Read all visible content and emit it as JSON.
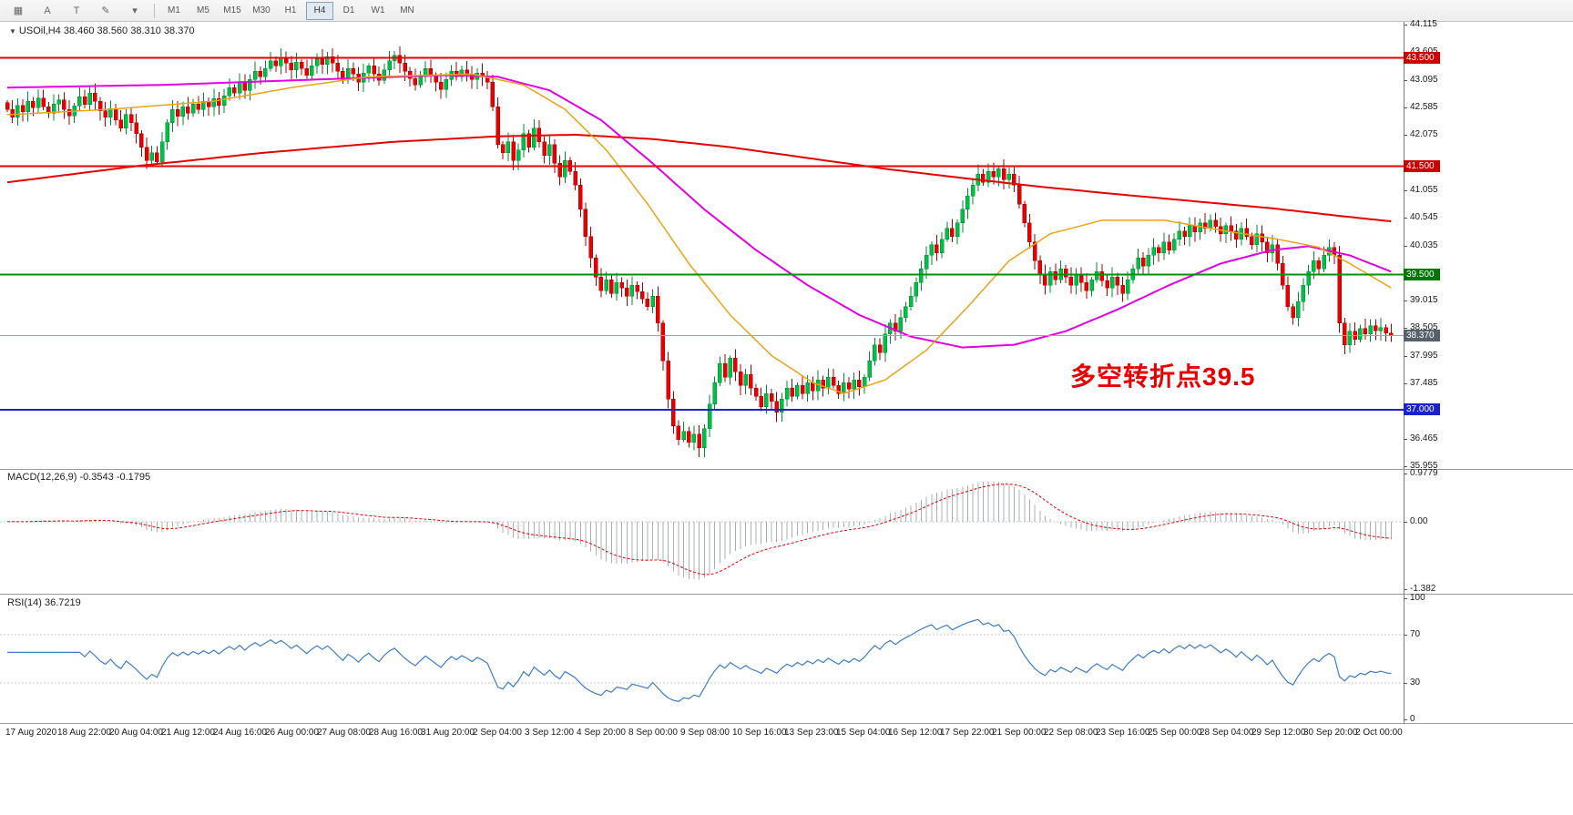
{
  "toolbar": {
    "left_icons": [
      {
        "name": "chart-grid-icon",
        "glyph": "▦"
      },
      {
        "name": "annotate-letter-icon",
        "glyph": "A"
      },
      {
        "name": "text-tool-icon",
        "glyph": "T"
      },
      {
        "name": "line-style-icon",
        "glyph": "✎"
      },
      {
        "name": "dropdown-caret-icon",
        "glyph": "▾"
      }
    ],
    "timeframes": [
      {
        "label": "M1",
        "active": false
      },
      {
        "label": "M5",
        "active": false
      },
      {
        "label": "M15",
        "active": false
      },
      {
        "label": "M30",
        "active": false
      },
      {
        "label": "H1",
        "active": false
      },
      {
        "label": "H4",
        "active": true
      },
      {
        "label": "D1",
        "active": false
      },
      {
        "label": "W1",
        "active": false
      },
      {
        "label": "MN",
        "active": false
      }
    ]
  },
  "chart_header": {
    "marker": "▼",
    "text": "USOil,H4  38.460 38.560 38.310 38.370"
  },
  "indicator_labels": {
    "macd": "MACD(12,26,9) -0.3543 -0.1795",
    "rsi": "RSI(14) 36.7219"
  },
  "annotation": {
    "text": "多空转折点39.5",
    "color": "#e60000"
  },
  "price_axis": {
    "ticks": [
      {
        "t": "44.115",
        "v": 44.115
      },
      {
        "t": "43.605",
        "v": 43.605
      },
      {
        "t": "43.095",
        "v": 43.095
      },
      {
        "t": "42.585",
        "v": 42.585
      },
      {
        "t": "42.075",
        "v": 42.075
      },
      {
        "t": "41.055",
        "v": 41.055
      },
      {
        "t": "40.545",
        "v": 40.545
      },
      {
        "t": "40.035",
        "v": 40.035
      },
      {
        "t": "39.015",
        "v": 39.015
      },
      {
        "t": "38.505",
        "v": 38.505
      },
      {
        "t": "37.995",
        "v": 37.995
      },
      {
        "t": "37.485",
        "v": 37.485
      },
      {
        "t": "36.465",
        "v": 36.465
      },
      {
        "t": "35.955",
        "v": 35.955
      }
    ],
    "badges": [
      {
        "t": "43.500",
        "v": 43.5,
        "color": "#cc0000"
      },
      {
        "t": "41.500",
        "v": 41.5,
        "color": "#cc0000"
      },
      {
        "t": "39.500",
        "v": 39.5,
        "color": "#007800"
      },
      {
        "t": "38.370",
        "v": 38.37,
        "color": "#55616b"
      },
      {
        "t": "37.000",
        "v": 37.0,
        "color": "#1a22cc"
      }
    ]
  },
  "macd_axis": [
    {
      "t": "0.9779",
      "v": 0.9779
    },
    {
      "t": "0.00",
      "v": 0
    },
    {
      "t": "-1.382",
      "v": -1.382
    }
  ],
  "rsi_axis": [
    {
      "t": "100",
      "v": 100
    },
    {
      "t": "70",
      "v": 70
    },
    {
      "t": "30",
      "v": 30
    },
    {
      "t": "0",
      "v": 0
    }
  ],
  "chart_data": {
    "type": "candlestick",
    "symbol": "USOil",
    "timeframe": "H4",
    "title": "USOil,H4",
    "price_range": [
      35.905,
      44.165
    ],
    "x_labels": [
      "17 Aug 2020",
      "18 Aug 22:00",
      "20 Aug 04:00",
      "21 Aug 12:00",
      "24 Aug 16:00",
      "26 Aug 00:00",
      "27 Aug 08:00",
      "28 Aug 16:00",
      "31 Aug 20:00",
      "2 Sep 04:00",
      "3 Sep 12:00",
      "4 Sep 20:00",
      "8 Sep 00:00",
      "9 Sep 08:00",
      "10 Sep 16:00",
      "13 Sep 23:00",
      "15 Sep 04:00",
      "16 Sep 12:00",
      "17 Sep 22:00",
      "21 Sep 00:00",
      "22 Sep 08:00",
      "23 Sep 16:00",
      "25 Sep 00:00",
      "28 Sep 04:00",
      "29 Sep 12:00",
      "30 Sep 20:00",
      "2 Oct 00:00"
    ],
    "closes": [
      42.55,
      42.4,
      42.62,
      42.5,
      42.7,
      42.58,
      42.76,
      42.6,
      42.48,
      42.65,
      42.72,
      42.55,
      42.43,
      42.61,
      42.78,
      42.64,
      42.85,
      42.7,
      42.52,
      42.4,
      42.56,
      42.35,
      42.2,
      42.45,
      42.3,
      42.1,
      41.85,
      41.6,
      41.75,
      41.58,
      41.95,
      42.3,
      42.55,
      42.42,
      42.6,
      42.48,
      42.65,
      42.55,
      42.7,
      42.6,
      42.75,
      42.62,
      42.8,
      42.95,
      42.85,
      43.05,
      42.9,
      43.1,
      43.25,
      43.15,
      43.3,
      43.45,
      43.35,
      43.5,
      43.4,
      43.28,
      43.42,
      43.3,
      43.18,
      43.35,
      43.48,
      43.38,
      43.52,
      43.4,
      43.25,
      43.1,
      43.3,
      43.2,
      43.05,
      43.22,
      43.35,
      43.2,
      43.08,
      43.28,
      43.45,
      43.55,
      43.4,
      43.25,
      43.12,
      43.0,
      43.15,
      43.3,
      43.18,
      43.05,
      42.92,
      43.1,
      43.25,
      43.15,
      43.28,
      43.2,
      43.1,
      43.22,
      43.15,
      43.05,
      42.6,
      41.9,
      41.75,
      41.95,
      41.6,
      41.8,
      42.1,
      41.85,
      42.2,
      41.95,
      41.7,
      41.9,
      41.55,
      41.3,
      41.6,
      41.4,
      41.15,
      40.7,
      40.2,
      39.8,
      39.45,
      39.2,
      39.4,
      39.15,
      39.35,
      39.25,
      39.1,
      39.3,
      39.18,
      39.05,
      38.9,
      39.1,
      38.6,
      37.9,
      37.2,
      36.7,
      36.45,
      36.6,
      36.4,
      36.55,
      36.3,
      36.65,
      37.1,
      37.5,
      37.85,
      37.6,
      37.95,
      37.7,
      37.45,
      37.65,
      37.4,
      37.25,
      37.05,
      37.3,
      37.15,
      36.95,
      37.2,
      37.4,
      37.25,
      37.45,
      37.3,
      37.5,
      37.35,
      37.55,
      37.4,
      37.6,
      37.45,
      37.3,
      37.5,
      37.38,
      37.55,
      37.42,
      37.6,
      37.9,
      38.2,
      38.05,
      38.4,
      38.6,
      38.45,
      38.7,
      38.9,
      39.1,
      39.35,
      39.6,
      39.85,
      40.05,
      39.9,
      40.15,
      40.35,
      40.2,
      40.45,
      40.7,
      40.95,
      41.15,
      41.35,
      41.2,
      41.4,
      41.3,
      41.45,
      41.25,
      41.35,
      41.15,
      40.8,
      40.45,
      40.1,
      39.75,
      39.5,
      39.3,
      39.55,
      39.4,
      39.6,
      39.45,
      39.3,
      39.5,
      39.35,
      39.2,
      39.4,
      39.55,
      39.38,
      39.25,
      39.45,
      39.3,
      39.15,
      39.4,
      39.6,
      39.8,
      39.65,
      39.85,
      40.0,
      39.9,
      40.1,
      39.95,
      40.15,
      40.3,
      40.2,
      40.4,
      40.28,
      40.45,
      40.35,
      40.5,
      40.38,
      40.25,
      40.4,
      40.3,
      40.15,
      40.35,
      40.2,
      40.05,
      40.25,
      40.1,
      39.9,
      40.05,
      39.7,
      39.3,
      38.9,
      38.7,
      39.0,
      39.3,
      39.55,
      39.75,
      39.6,
      39.85,
      40.0,
      39.85,
      38.6,
      38.2,
      38.45,
      38.3,
      38.5,
      38.4,
      38.55,
      38.46,
      38.52,
      38.42,
      38.37
    ],
    "colors": {
      "up_fill": "#00bf46",
      "up_stroke": "#008a32",
      "down_fill": "#e60000",
      "down_stroke": "#a80000",
      "macd_hist": "#a9b0b5",
      "macd_signal": "#e60000",
      "rsi_line": "#3f7cc9",
      "rsi_levels": "#c9c9c9"
    },
    "horizontal_lines": [
      {
        "name": "resistance-4350",
        "price": 43.5,
        "color": "#e60000",
        "width": 2
      },
      {
        "name": "resistance-4150",
        "price": 41.5,
        "color": "#e60000",
        "width": 2
      },
      {
        "name": "pivot-3950",
        "price": 39.5,
        "color": "#009000",
        "width": 2
      },
      {
        "name": "support-3700",
        "price": 37.0,
        "color": "#2222cc",
        "width": 2
      },
      {
        "name": "bid-price",
        "price": 38.37,
        "color": "#90a6bc",
        "width": 1
      }
    ],
    "moving_averages": [
      {
        "name": "slow-ma",
        "color": "#e60000",
        "width": 2,
        "anchors": [
          [
            0,
            41.2
          ],
          [
            25,
            41.5
          ],
          [
            50,
            41.75
          ],
          [
            75,
            41.95
          ],
          [
            95,
            42.05
          ],
          [
            110,
            42.08
          ],
          [
            125,
            42.0
          ],
          [
            140,
            41.85
          ],
          [
            155,
            41.65
          ],
          [
            170,
            41.45
          ],
          [
            185,
            41.28
          ],
          [
            200,
            41.12
          ],
          [
            215,
            40.98
          ],
          [
            230,
            40.85
          ],
          [
            245,
            40.72
          ],
          [
            258,
            40.58
          ],
          [
            268,
            40.48
          ]
        ]
      },
      {
        "name": "medium-ma",
        "color": "#e000e0",
        "width": 2,
        "anchors": [
          [
            0,
            42.95
          ],
          [
            30,
            43.0
          ],
          [
            60,
            43.1
          ],
          [
            85,
            43.18
          ],
          [
            95,
            43.15
          ],
          [
            105,
            42.9
          ],
          [
            115,
            42.35
          ],
          [
            125,
            41.55
          ],
          [
            135,
            40.7
          ],
          [
            145,
            39.95
          ],
          [
            155,
            39.3
          ],
          [
            165,
            38.75
          ],
          [
            175,
            38.35
          ],
          [
            185,
            38.15
          ],
          [
            195,
            38.2
          ],
          [
            205,
            38.45
          ],
          [
            215,
            38.85
          ],
          [
            225,
            39.3
          ],
          [
            235,
            39.7
          ],
          [
            245,
            39.95
          ],
          [
            252,
            40.02
          ],
          [
            260,
            39.85
          ],
          [
            268,
            39.55
          ]
        ]
      },
      {
        "name": "fast-ma",
        "color": "#e8a418",
        "width": 1.5,
        "anchors": [
          [
            0,
            42.45
          ],
          [
            20,
            42.55
          ],
          [
            40,
            42.7
          ],
          [
            55,
            42.95
          ],
          [
            70,
            43.15
          ],
          [
            90,
            43.2
          ],
          [
            100,
            43.0
          ],
          [
            108,
            42.55
          ],
          [
            116,
            41.8
          ],
          [
            124,
            40.8
          ],
          [
            132,
            39.7
          ],
          [
            140,
            38.75
          ],
          [
            148,
            38.0
          ],
          [
            156,
            37.5
          ],
          [
            162,
            37.3
          ],
          [
            170,
            37.55
          ],
          [
            178,
            38.1
          ],
          [
            186,
            38.9
          ],
          [
            194,
            39.75
          ],
          [
            202,
            40.25
          ],
          [
            212,
            40.5
          ],
          [
            224,
            40.5
          ],
          [
            236,
            40.3
          ],
          [
            246,
            40.15
          ],
          [
            254,
            40.0
          ],
          [
            260,
            39.7
          ],
          [
            268,
            39.25
          ]
        ]
      }
    ],
    "macd": {
      "params": "12,26,9",
      "scale": [
        -1.48,
        1.06
      ],
      "current": "-0.3543 -0.1795"
    },
    "rsi": {
      "period": 14,
      "scale": [
        0,
        100
      ],
      "levels": [
        70,
        30
      ],
      "current": "36.7219"
    }
  }
}
